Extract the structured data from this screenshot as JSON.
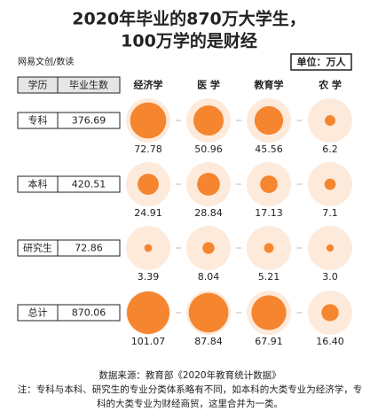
{
  "chart_data": {
    "type": "bubble",
    "title": "2020年毕业的870万大学生，",
    "subtitle": "100万学的是财经",
    "brand": "网易文创/数读",
    "unit_label": "单位：万人",
    "row_header": "学历",
    "total_header": "毕业生数",
    "categories": [
      "经济学",
      "医 学",
      "教育学",
      "农 学"
    ],
    "color": "#f5852f",
    "bg_color": "#fdeadb",
    "series": [
      {
        "name": "专科",
        "total": 376.69,
        "values": [
          72.78,
          50.96,
          45.56,
          6.2
        ]
      },
      {
        "name": "本科",
        "total": 420.51,
        "values": [
          24.91,
          28.84,
          17.13,
          7.1
        ]
      },
      {
        "name": "研究生",
        "total": 72.86,
        "values": [
          3.39,
          8.04,
          5.21,
          3
        ],
        "value_labels": [
          "3.39",
          "8.04",
          "5.21",
          "3.0"
        ]
      },
      {
        "name": "总计",
        "total": 870.06,
        "values": [
          101.07,
          87.84,
          67.91,
          16.4
        ],
        "value_labels": [
          "101.07",
          "87.84",
          "67.91",
          "16.40"
        ]
      }
    ],
    "source": "数据来源：教育部《2020年教育统计数据》",
    "note": "注：专科与本科、研究生的专业分类体系略有不同，如本科的大类专业为经济学，专科的大类专业为财经商贸，这里合并为一类。"
  }
}
